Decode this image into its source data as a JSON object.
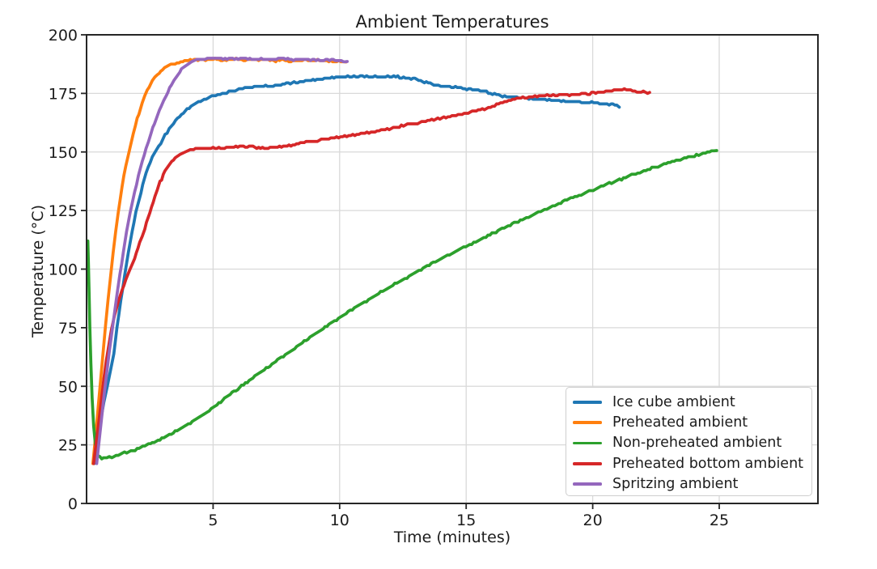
{
  "chart_data": {
    "type": "line",
    "title": "Ambient Temperatures",
    "xlabel": "Time (minutes)",
    "ylabel": "Temperature (°C)",
    "xlim": [
      0,
      28.9
    ],
    "ylim": [
      0,
      200
    ],
    "xticks": [
      5,
      10,
      15,
      20,
      25
    ],
    "yticks": [
      0,
      25,
      50,
      75,
      100,
      125,
      150,
      175,
      200
    ],
    "grid": true,
    "legend_position": "lower right",
    "series": [
      {
        "name": "Ice cube ambient",
        "color": "#1f77b4",
        "x": [
          0.3,
          0.42,
          0.55,
          0.68,
          0.82,
          0.95,
          1.08,
          1.2,
          1.35,
          1.5,
          1.65,
          1.8,
          1.95,
          2.15,
          2.35,
          2.6,
          2.85,
          3.1,
          3.35,
          3.6,
          3.9,
          4.2,
          4.5,
          4.8,
          5.1,
          5.45,
          5.8,
          6.1,
          6.4,
          6.7,
          7.0,
          7.3,
          7.6,
          7.9,
          8.2,
          8.5,
          8.8,
          9.1,
          9.4,
          9.7,
          10.0,
          10.4,
          10.9,
          11.4,
          11.9,
          12.3,
          12.6,
          12.9,
          13.2,
          13.5,
          13.8,
          14.0,
          14.2,
          14.5,
          14.8,
          15.1,
          15.4,
          15.8,
          16.2,
          16.6,
          17.0,
          17.4,
          17.8,
          18.2,
          18.6,
          19.0,
          19.4,
          19.8,
          20.2,
          20.5,
          20.8,
          20.95,
          21.05
        ],
        "y": [
          17,
          26,
          35,
          43,
          50,
          57,
          64,
          75,
          86,
          97,
          107,
          116,
          124,
          133,
          141,
          148,
          152.5,
          157,
          161,
          164.5,
          167.5,
          170,
          171.8,
          173.2,
          174.3,
          175.3,
          176.1,
          176.9,
          177.5,
          177.9,
          178.2,
          178.0,
          178.4,
          179.0,
          179.6,
          180.1,
          180.6,
          181.0,
          181.4,
          181.7,
          181.9,
          182.1,
          182.2,
          182.2,
          182.1,
          182.0,
          181.8,
          181.3,
          180.4,
          179.4,
          178.5,
          177.9,
          178.1,
          177.7,
          177.3,
          176.8,
          176.4,
          175.6,
          174.4,
          173.7,
          173.2,
          172.9,
          172.6,
          172.3,
          172.0,
          171.8,
          171.5,
          171.2,
          170.9,
          170.6,
          170.3,
          169.7,
          169.1
        ]
      },
      {
        "name": "Preheated ambient",
        "color": "#ff7f0e",
        "x": [
          0.25,
          0.35,
          0.45,
          0.55,
          0.65,
          0.75,
          0.85,
          0.95,
          1.05,
          1.15,
          1.25,
          1.4,
          1.55,
          1.7,
          1.85,
          2.0,
          2.2,
          2.4,
          2.6,
          2.8,
          3.0,
          3.25,
          3.5,
          3.8,
          4.1,
          4.4,
          4.7,
          5.0,
          5.3,
          5.6,
          5.9,
          6.2,
          6.5,
          6.8,
          7.1,
          7.4,
          7.7,
          8.0,
          8.3,
          8.6,
          8.9,
          9.2,
          9.5,
          9.8,
          10.05,
          10.25
        ],
        "y": [
          17,
          28,
          40,
          52,
          64,
          76,
          87,
          97,
          107,
          116,
          124,
          135,
          144,
          151,
          158,
          164,
          171,
          176.5,
          180.5,
          183,
          185,
          186.8,
          188,
          188.8,
          189.2,
          189.4,
          189.3,
          189.6,
          189.2,
          189.5,
          189.7,
          189.3,
          189.6,
          189.1,
          189.4,
          188.9,
          189.2,
          188.8,
          189.1,
          189.4,
          188.9,
          189.1,
          188.7,
          188.9,
          188.5,
          188.4
        ]
      },
      {
        "name": "Non-preheated ambient",
        "color": "#2ca02c",
        "x": [
          0.05,
          0.07,
          0.1,
          0.13,
          0.17,
          0.22,
          0.28,
          0.35,
          0.45,
          0.6,
          0.8,
          1.0,
          1.25,
          1.5,
          1.75,
          2.0,
          2.3,
          2.6,
          2.9,
          3.2,
          3.5,
          3.8,
          4.1,
          4.4,
          4.7,
          5.0,
          5.3,
          5.6,
          5.9,
          6.2,
          6.5,
          6.8,
          7.1,
          7.4,
          7.7,
          8.0,
          8.3,
          8.6,
          8.9,
          9.2,
          9.5,
          9.8,
          10.1,
          10.5,
          10.9,
          11.3,
          11.7,
          12.1,
          12.5,
          12.9,
          13.3,
          13.7,
          14.1,
          14.5,
          14.9,
          15.3,
          15.7,
          16.1,
          16.5,
          16.9,
          17.3,
          17.7,
          18.1,
          18.5,
          18.9,
          19.3,
          19.7,
          20.1,
          20.5,
          20.9,
          21.3,
          21.7,
          22.1,
          22.5,
          22.9,
          23.3,
          23.7,
          24.1,
          24.45,
          24.7,
          24.9
        ],
        "y": [
          112,
          104,
          90,
          75,
          60,
          45,
          33,
          25,
          20.5,
          19.3,
          19.3,
          19.8,
          20.7,
          21.6,
          22.4,
          23.3,
          24.6,
          25.9,
          27.3,
          28.9,
          30.6,
          32.4,
          34.3,
          36.4,
          38.7,
          41,
          43.4,
          45.8,
          48.2,
          50.6,
          53,
          55.4,
          57.8,
          60.1,
          62.4,
          64.7,
          67,
          69.2,
          71.4,
          73.6,
          75.8,
          78,
          80.1,
          82.8,
          85.4,
          88,
          90.5,
          93,
          95.5,
          98,
          100.4,
          102.7,
          105,
          107.2,
          109.3,
          111.4,
          113.5,
          115.6,
          117.6,
          119.6,
          121.5,
          123.4,
          125.3,
          127.2,
          129,
          130.8,
          132.5,
          134.2,
          135.9,
          137.5,
          139.1,
          140.7,
          142.2,
          143.6,
          145,
          146.3,
          147.5,
          148.6,
          149.6,
          150.3,
          150.6
        ]
      },
      {
        "name": "Preheated bottom ambient",
        "color": "#d62728",
        "x": [
          0.28,
          0.38,
          0.48,
          0.58,
          0.68,
          0.78,
          0.88,
          0.98,
          1.1,
          1.25,
          1.4,
          1.55,
          1.7,
          1.9,
          2.1,
          2.3,
          2.5,
          2.7,
          2.9,
          3.1,
          3.3,
          3.5,
          3.7,
          3.9,
          4.1,
          4.3,
          4.5,
          4.75,
          5.0,
          5.3,
          5.6,
          5.9,
          6.2,
          6.5,
          6.8,
          7.1,
          7.4,
          7.7,
          8.0,
          8.3,
          8.6,
          8.9,
          9.2,
          9.5,
          9.8,
          10.2,
          10.6,
          11.0,
          11.4,
          11.8,
          12.2,
          12.6,
          13.0,
          13.4,
          13.8,
          14.2,
          14.6,
          15.0,
          15.4,
          15.8,
          16.2,
          16.6,
          17.0,
          17.4,
          17.8,
          18.2,
          18.6,
          19.0,
          19.4,
          19.8,
          20.2,
          20.6,
          21.0,
          21.25,
          21.5,
          21.75,
          22.0,
          22.25
        ],
        "y": [
          17,
          26,
          35,
          44,
          53,
          61,
          68,
          74,
          80,
          86,
          91,
          95.5,
          99.5,
          105,
          111,
          117.5,
          124,
          131,
          137,
          141.5,
          145,
          147.5,
          149.2,
          150.3,
          150.9,
          151.2,
          151.4,
          151.5,
          151.6,
          151.6,
          151.9,
          152.2,
          152.4,
          152.2,
          151.9,
          151.7,
          151.9,
          152.3,
          152.8,
          153.4,
          154.0,
          154.5,
          155.0,
          155.5,
          156.0,
          156.7,
          157.3,
          158.0,
          158.8,
          159.6,
          160.5,
          161.4,
          162.3,
          163.2,
          164.0,
          164.8,
          165.7,
          166.6,
          167.5,
          168.6,
          170.3,
          171.7,
          172.8,
          173.3,
          173.9,
          174.2,
          174.4,
          174.5,
          174.6,
          174.9,
          175.3,
          175.9,
          176.5,
          176.8,
          176.4,
          175.9,
          175.6,
          175.4
        ]
      },
      {
        "name": "Spritzing ambient",
        "color": "#9467bd",
        "x": [
          0.4,
          0.5,
          0.6,
          0.7,
          0.8,
          0.9,
          1.0,
          1.1,
          1.2,
          1.32,
          1.45,
          1.58,
          1.72,
          1.9,
          2.05,
          2.2,
          2.35,
          2.55,
          2.75,
          2.95,
          3.15,
          3.35,
          3.55,
          3.75,
          3.95,
          4.15,
          4.35,
          4.6,
          4.85,
          5.1,
          5.4,
          5.7,
          6.0,
          6.3,
          6.6,
          6.9,
          7.2,
          7.5,
          7.8,
          8.1,
          8.4,
          8.7,
          9.0,
          9.3,
          9.6,
          9.9,
          10.15,
          10.3
        ],
        "y": [
          17,
          27,
          37,
          47,
          56,
          65,
          73,
          81,
          89,
          98,
          107,
          116,
          124,
          133,
          140,
          146,
          151,
          158,
          164,
          169.5,
          174,
          178.5,
          182.5,
          185.3,
          187.3,
          188.5,
          189.3,
          189.8,
          190.0,
          190.0,
          189.6,
          190.0,
          189.5,
          189.9,
          189.4,
          189.8,
          189.3,
          189.7,
          189.9,
          189.4,
          189.7,
          189.2,
          189.5,
          189.0,
          189.3,
          188.9,
          188.8,
          188.6
        ]
      }
    ]
  }
}
